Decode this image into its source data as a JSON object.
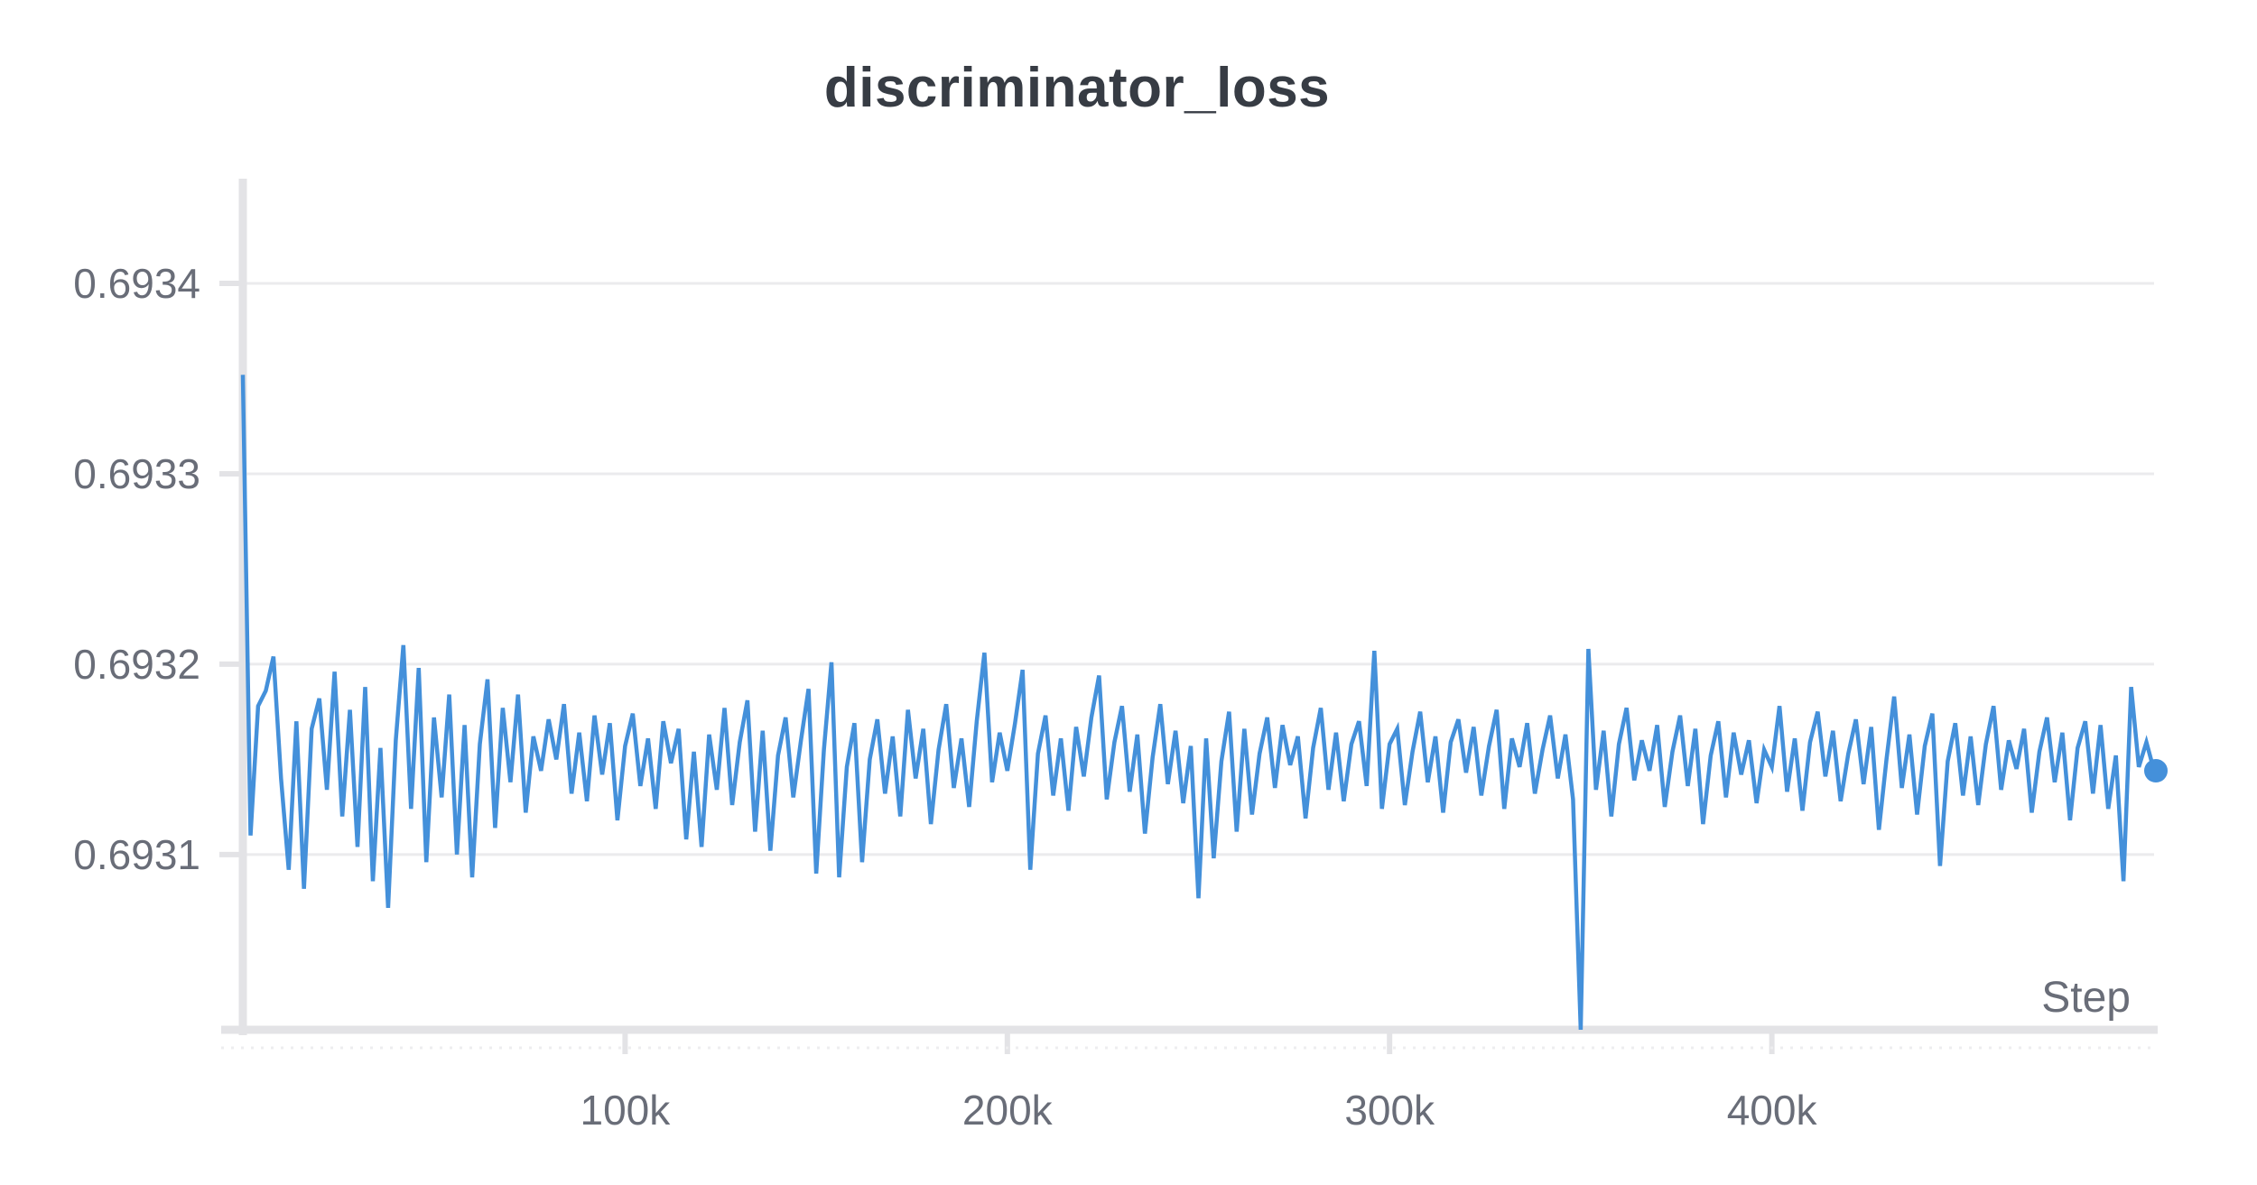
{
  "chart_data": {
    "type": "line",
    "title": "discriminator_loss",
    "xlabel": "Step",
    "ylabel": "",
    "legend": "none",
    "grid": "horizontal-only",
    "line_color": "#4490da",
    "grid_color": "#ebebed",
    "axis_color": "#e3e3e6",
    "tick_label_color": "#696d78",
    "title_color": "#373c44",
    "xlim": [
      0,
      500000
    ],
    "ylim": [
      0.693007,
      0.693455
    ],
    "xticks": [
      {
        "label": "100k",
        "value": 100000
      },
      {
        "label": "200k",
        "value": 200000
      },
      {
        "label": "300k",
        "value": 300000
      },
      {
        "label": "400k",
        "value": 400000
      }
    ],
    "yticks": [
      {
        "label": "0.6934",
        "value": 0.6934
      },
      {
        "label": "0.6933",
        "value": 0.6933
      },
      {
        "label": "0.6932",
        "value": 0.6932
      },
      {
        "label": "0.6931",
        "value": 0.6931
      }
    ],
    "series": [
      {
        "name": "discriminator_loss",
        "end_marker": true,
        "points": [
          [
            0,
            0.693352
          ],
          [
            2000,
            0.69311
          ],
          [
            4000,
            0.693178
          ],
          [
            6000,
            0.693186
          ],
          [
            8000,
            0.693204
          ],
          [
            10000,
            0.69314
          ],
          [
            12000,
            0.693092
          ],
          [
            14000,
            0.69317
          ],
          [
            16000,
            0.693082
          ],
          [
            18000,
            0.693166
          ],
          [
            20000,
            0.693182
          ],
          [
            22000,
            0.693134
          ],
          [
            24000,
            0.693196
          ],
          [
            26000,
            0.69312
          ],
          [
            28000,
            0.693176
          ],
          [
            30000,
            0.693104
          ],
          [
            32000,
            0.693188
          ],
          [
            34000,
            0.693086
          ],
          [
            36000,
            0.693156
          ],
          [
            38000,
            0.693072
          ],
          [
            40000,
            0.69316
          ],
          [
            42000,
            0.69321
          ],
          [
            44000,
            0.693124
          ],
          [
            46000,
            0.693198
          ],
          [
            48000,
            0.693096
          ],
          [
            50000,
            0.693172
          ],
          [
            52000,
            0.69313
          ],
          [
            54000,
            0.693184
          ],
          [
            56000,
            0.6931
          ],
          [
            58000,
            0.693168
          ],
          [
            60000,
            0.693088
          ],
          [
            62000,
            0.693158
          ],
          [
            64000,
            0.693192
          ],
          [
            66000,
            0.693114
          ],
          [
            68000,
            0.693177
          ],
          [
            70000,
            0.693138
          ],
          [
            72000,
            0.693184
          ],
          [
            74000,
            0.693122
          ],
          [
            76000,
            0.693162
          ],
          [
            78000,
            0.693144
          ],
          [
            80000,
            0.693171
          ],
          [
            82000,
            0.69315
          ],
          [
            84000,
            0.693179
          ],
          [
            86000,
            0.693132
          ],
          [
            88000,
            0.693164
          ],
          [
            90000,
            0.693128
          ],
          [
            92000,
            0.693173
          ],
          [
            94000,
            0.693142
          ],
          [
            96000,
            0.693169
          ],
          [
            98000,
            0.693118
          ],
          [
            100000,
            0.693157
          ],
          [
            102000,
            0.693174
          ],
          [
            104000,
            0.693136
          ],
          [
            106000,
            0.693161
          ],
          [
            108000,
            0.693124
          ],
          [
            110000,
            0.69317
          ],
          [
            112000,
            0.693148
          ],
          [
            114000,
            0.693166
          ],
          [
            116000,
            0.693108
          ],
          [
            118000,
            0.693154
          ],
          [
            120000,
            0.693104
          ],
          [
            122000,
            0.693163
          ],
          [
            124000,
            0.693134
          ],
          [
            126000,
            0.693177
          ],
          [
            128000,
            0.693126
          ],
          [
            130000,
            0.693159
          ],
          [
            132000,
            0.693181
          ],
          [
            134000,
            0.693112
          ],
          [
            136000,
            0.693165
          ],
          [
            138000,
            0.693102
          ],
          [
            140000,
            0.693152
          ],
          [
            142000,
            0.693172
          ],
          [
            144000,
            0.69313
          ],
          [
            146000,
            0.69316
          ],
          [
            148000,
            0.693187
          ],
          [
            150000,
            0.69309
          ],
          [
            152000,
            0.693155
          ],
          [
            154000,
            0.693201
          ],
          [
            156000,
            0.693088
          ],
          [
            158000,
            0.693146
          ],
          [
            160000,
            0.693169
          ],
          [
            162000,
            0.693096
          ],
          [
            164000,
            0.69315
          ],
          [
            166000,
            0.693171
          ],
          [
            168000,
            0.693132
          ],
          [
            170000,
            0.693162
          ],
          [
            172000,
            0.69312
          ],
          [
            174000,
            0.693176
          ],
          [
            176000,
            0.69314
          ],
          [
            178000,
            0.693166
          ],
          [
            180000,
            0.693116
          ],
          [
            182000,
            0.693155
          ],
          [
            184000,
            0.693179
          ],
          [
            186000,
            0.693135
          ],
          [
            188000,
            0.693161
          ],
          [
            190000,
            0.693125
          ],
          [
            192000,
            0.69317
          ],
          [
            194000,
            0.693206
          ],
          [
            196000,
            0.693138
          ],
          [
            198000,
            0.693164
          ],
          [
            200000,
            0.693144
          ],
          [
            202000,
            0.693169
          ],
          [
            204000,
            0.693197
          ],
          [
            206000,
            0.693092
          ],
          [
            208000,
            0.693153
          ],
          [
            210000,
            0.693173
          ],
          [
            212000,
            0.693131
          ],
          [
            214000,
            0.693161
          ],
          [
            216000,
            0.693123
          ],
          [
            218000,
            0.693167
          ],
          [
            220000,
            0.693141
          ],
          [
            222000,
            0.693172
          ],
          [
            224000,
            0.693194
          ],
          [
            226000,
            0.693129
          ],
          [
            228000,
            0.693159
          ],
          [
            230000,
            0.693178
          ],
          [
            232000,
            0.693133
          ],
          [
            234000,
            0.693163
          ],
          [
            236000,
            0.693111
          ],
          [
            238000,
            0.693151
          ],
          [
            240000,
            0.693179
          ],
          [
            242000,
            0.693137
          ],
          [
            244000,
            0.693165
          ],
          [
            246000,
            0.693127
          ],
          [
            248000,
            0.693157
          ],
          [
            250000,
            0.693077
          ],
          [
            252000,
            0.693161
          ],
          [
            254000,
            0.693098
          ],
          [
            256000,
            0.693149
          ],
          [
            258000,
            0.693175
          ],
          [
            260000,
            0.693112
          ],
          [
            262000,
            0.693166
          ],
          [
            264000,
            0.693121
          ],
          [
            266000,
            0.693153
          ],
          [
            268000,
            0.693172
          ],
          [
            270000,
            0.693135
          ],
          [
            272000,
            0.693168
          ],
          [
            274000,
            0.693147
          ],
          [
            276000,
            0.693162
          ],
          [
            278000,
            0.693119
          ],
          [
            280000,
            0.693156
          ],
          [
            282000,
            0.693177
          ],
          [
            284000,
            0.693134
          ],
          [
            286000,
            0.693164
          ],
          [
            288000,
            0.693128
          ],
          [
            290000,
            0.693158
          ],
          [
            292000,
            0.69317
          ],
          [
            294000,
            0.693136
          ],
          [
            296000,
            0.693207
          ],
          [
            298000,
            0.693124
          ],
          [
            300000,
            0.693158
          ],
          [
            302000,
            0.693166
          ],
          [
            304000,
            0.693126
          ],
          [
            306000,
            0.693154
          ],
          [
            308000,
            0.693175
          ],
          [
            310000,
            0.693138
          ],
          [
            312000,
            0.693162
          ],
          [
            314000,
            0.693122
          ],
          [
            316000,
            0.693159
          ],
          [
            318000,
            0.693171
          ],
          [
            320000,
            0.693143
          ],
          [
            322000,
            0.693167
          ],
          [
            324000,
            0.693131
          ],
          [
            326000,
            0.693157
          ],
          [
            328000,
            0.693176
          ],
          [
            330000,
            0.693124
          ],
          [
            332000,
            0.693161
          ],
          [
            334000,
            0.693146
          ],
          [
            336000,
            0.693169
          ],
          [
            338000,
            0.693132
          ],
          [
            340000,
            0.693155
          ],
          [
            342000,
            0.693173
          ],
          [
            344000,
            0.69314
          ],
          [
            346000,
            0.693163
          ],
          [
            348000,
            0.693129
          ],
          [
            350000,
            0.693008
          ],
          [
            352000,
            0.693208
          ],
          [
            354000,
            0.693134
          ],
          [
            356000,
            0.693165
          ],
          [
            358000,
            0.69312
          ],
          [
            360000,
            0.693158
          ],
          [
            362000,
            0.693177
          ],
          [
            364000,
            0.693139
          ],
          [
            366000,
            0.69316
          ],
          [
            368000,
            0.693144
          ],
          [
            370000,
            0.693168
          ],
          [
            372000,
            0.693125
          ],
          [
            374000,
            0.693154
          ],
          [
            376000,
            0.693173
          ],
          [
            378000,
            0.693136
          ],
          [
            380000,
            0.693166
          ],
          [
            382000,
            0.693116
          ],
          [
            384000,
            0.693152
          ],
          [
            386000,
            0.69317
          ],
          [
            388000,
            0.69313
          ],
          [
            390000,
            0.693164
          ],
          [
            392000,
            0.693142
          ],
          [
            394000,
            0.69316
          ],
          [
            396000,
            0.693127
          ],
          [
            398000,
            0.693155
          ],
          [
            400000,
            0.693146
          ],
          [
            402000,
            0.693178
          ],
          [
            404000,
            0.693133
          ],
          [
            406000,
            0.693161
          ],
          [
            408000,
            0.693123
          ],
          [
            410000,
            0.693159
          ],
          [
            412000,
            0.693175
          ],
          [
            414000,
            0.693141
          ],
          [
            416000,
            0.693165
          ],
          [
            418000,
            0.693128
          ],
          [
            420000,
            0.693153
          ],
          [
            422000,
            0.693171
          ],
          [
            424000,
            0.693137
          ],
          [
            426000,
            0.693167
          ],
          [
            428000,
            0.693113
          ],
          [
            430000,
            0.69315
          ],
          [
            432000,
            0.693183
          ],
          [
            434000,
            0.693135
          ],
          [
            436000,
            0.693163
          ],
          [
            438000,
            0.693121
          ],
          [
            440000,
            0.693157
          ],
          [
            442000,
            0.693174
          ],
          [
            444000,
            0.693094
          ],
          [
            446000,
            0.693149
          ],
          [
            448000,
            0.693169
          ],
          [
            450000,
            0.693131
          ],
          [
            452000,
            0.693162
          ],
          [
            454000,
            0.693126
          ],
          [
            456000,
            0.693158
          ],
          [
            458000,
            0.693178
          ],
          [
            460000,
            0.693134
          ],
          [
            462000,
            0.69316
          ],
          [
            464000,
            0.693145
          ],
          [
            466000,
            0.693166
          ],
          [
            468000,
            0.693122
          ],
          [
            470000,
            0.693154
          ],
          [
            472000,
            0.693172
          ],
          [
            474000,
            0.693138
          ],
          [
            476000,
            0.693164
          ],
          [
            478000,
            0.693118
          ],
          [
            480000,
            0.693156
          ],
          [
            482000,
            0.69317
          ],
          [
            484000,
            0.693132
          ],
          [
            486000,
            0.693168
          ],
          [
            488000,
            0.693124
          ],
          [
            490000,
            0.693152
          ],
          [
            492000,
            0.693086
          ],
          [
            494000,
            0.693188
          ],
          [
            496000,
            0.693146
          ],
          [
            498000,
            0.693159
          ],
          [
            500000,
            0.693144
          ]
        ]
      }
    ]
  }
}
